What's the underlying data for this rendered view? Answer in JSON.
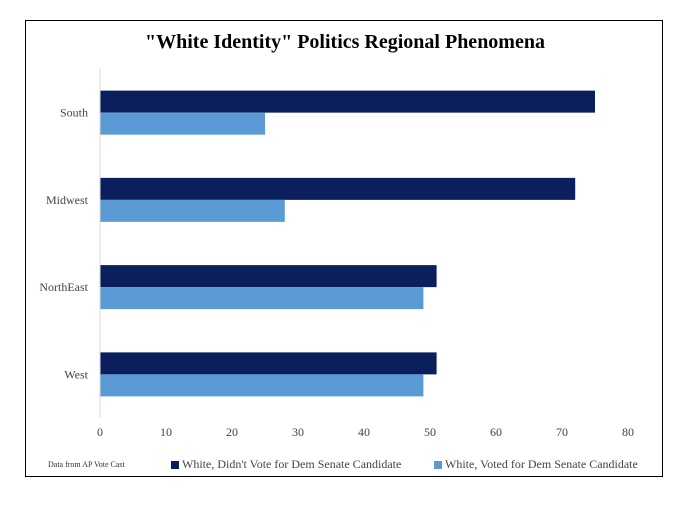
{
  "chart_data": {
    "type": "bar",
    "orientation": "horizontal",
    "title": "\"White Identity\" Politics Regional Phenomena",
    "categories": [
      "South",
      "Midwest",
      "NorthEast",
      "West"
    ],
    "series": [
      {
        "name": "White, Didn't Vote for Dem Senate Candidate",
        "color": "#0a1f5c",
        "values": [
          75,
          72,
          51,
          51
        ]
      },
      {
        "name": "White, Voted for Dem Senate Candidate",
        "color": "#5b9bd5",
        "values": [
          25,
          28,
          49,
          49
        ]
      }
    ],
    "xlim": [
      0,
      80
    ],
    "xticks": [
      0,
      10,
      20,
      30,
      40,
      50,
      60,
      70,
      80
    ],
    "grid": false,
    "legend_position": "bottom",
    "source_note": "Data from AP Vote Cast"
  }
}
